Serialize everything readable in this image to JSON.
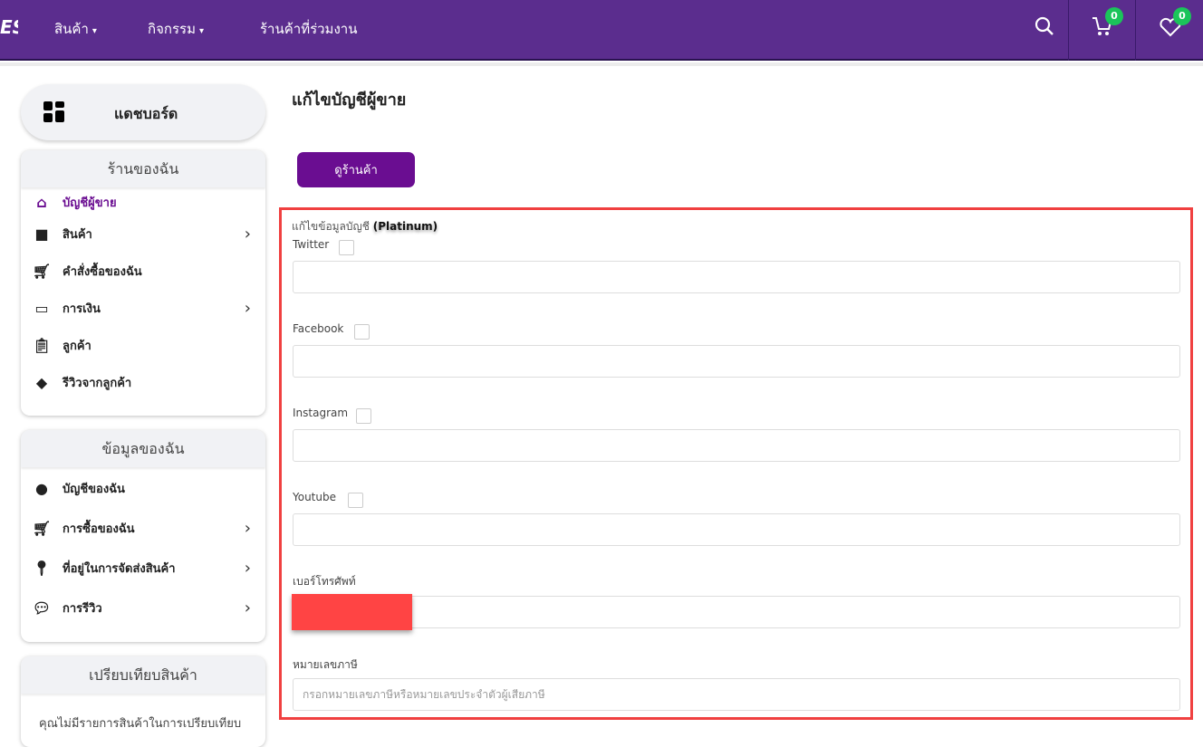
{
  "nav": {
    "logo": "ES",
    "items": [
      {
        "label": "สินค้า",
        "caret": "▾"
      },
      {
        "label": "กิจกรรม",
        "caret": "▾"
      },
      {
        "label": "ร้านค้าที่ร่วมงาน"
      }
    ],
    "cart_count": "0",
    "wishlist_count": "0"
  },
  "sidebar": {
    "dashboard": "แดชบอร์ด",
    "shop": {
      "title": "ร้านของฉัน",
      "items": [
        {
          "label": "บัญชีผู้ขาย",
          "icon": "home-icon",
          "active": true
        },
        {
          "label": "สินค้า",
          "icon": "box-icon",
          "chevron": true
        },
        {
          "label": "คำสั่งซื้อของฉัน",
          "icon": "cart-icon"
        },
        {
          "label": "การเงิน",
          "icon": "wallet-icon",
          "chevron": true
        },
        {
          "label": "ลูกค้า",
          "icon": "clipboard-icon"
        },
        {
          "label": "รีวิวจากลูกค้า",
          "icon": "review-icon"
        }
      ]
    },
    "mine": {
      "title": "ข้อมูลของฉัน",
      "items": [
        {
          "label": "บัญชีของฉัน",
          "icon": "user-icon"
        },
        {
          "label": "การซื้อของฉัน",
          "icon": "cart-plus-icon",
          "chevron": true
        },
        {
          "label": "ที่อยู่ในการจัดส่งสินค้า",
          "icon": "location-icon",
          "chevron": true
        },
        {
          "label": "การรีวิว",
          "icon": "chat-icon",
          "chevron": true
        }
      ]
    },
    "compare": {
      "title": "เปรียบเทียบสินค้า",
      "empty": "คุณไม่มีรายการสินค้าในการเปรียบเทียบ"
    }
  },
  "main": {
    "title": "แก้ไขบัญชีผู้ขาย",
    "view_shop": "ดูร้านค้า",
    "hint": "แก้ไขข้อมูลบัญชี",
    "tier": "(Platinum)",
    "fields": {
      "twitter": "Twitter",
      "facebook": "Facebook",
      "instagram": "Instagram",
      "youtube": "Youtube",
      "phone": "เบอร์โทรศัพท์",
      "tax": "หมายเลขภาษี",
      "tax_placeholder": "กรอกหมายเลขภาษีหรือหมายเลขประจำตัวผู้เสียภาษี"
    }
  },
  "colors": {
    "nav": "#5b2d8e",
    "accent": "#6a0d91",
    "badge": "#1bc45a",
    "highlight": "#f04040"
  }
}
